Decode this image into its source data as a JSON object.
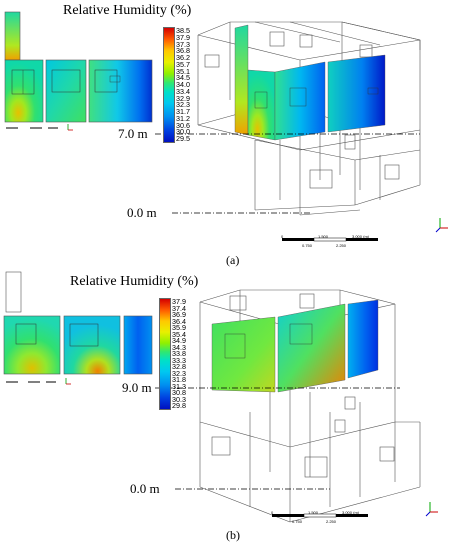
{
  "panels": [
    {
      "id": "a",
      "title": "Relative Humidity (%)",
      "colorbar": [
        "38.5",
        "37.9",
        "37.3",
        "36.8",
        "36.2",
        "35.7",
        "35.1",
        "34.5",
        "34.0",
        "33.4",
        "32.9",
        "32.3",
        "31.7",
        "31.2",
        "30.6",
        "30.0",
        "29.5"
      ],
      "level_upper": "7.0 m",
      "level_lower": "0.0 m",
      "caption": "(a)",
      "scale_labels": [
        "0",
        "1.500",
        "3.000 (m)",
        "0.750",
        "2.250"
      ]
    },
    {
      "id": "b",
      "title": "Relative Humidity (%)",
      "colorbar": [
        "37.9",
        "37.4",
        "36.9",
        "36.4",
        "35.9",
        "35.4",
        "34.9",
        "34.3",
        "33.8",
        "33.3",
        "32.8",
        "32.3",
        "31.8",
        "31.3",
        "30.8",
        "30.3",
        "29.8"
      ],
      "level_upper": "9.0 m",
      "level_lower": "0.0 m",
      "caption": "(b)",
      "scale_labels": [
        "0",
        "1.500",
        "3.000 (m)",
        "0.750",
        "2.250"
      ]
    }
  ]
}
